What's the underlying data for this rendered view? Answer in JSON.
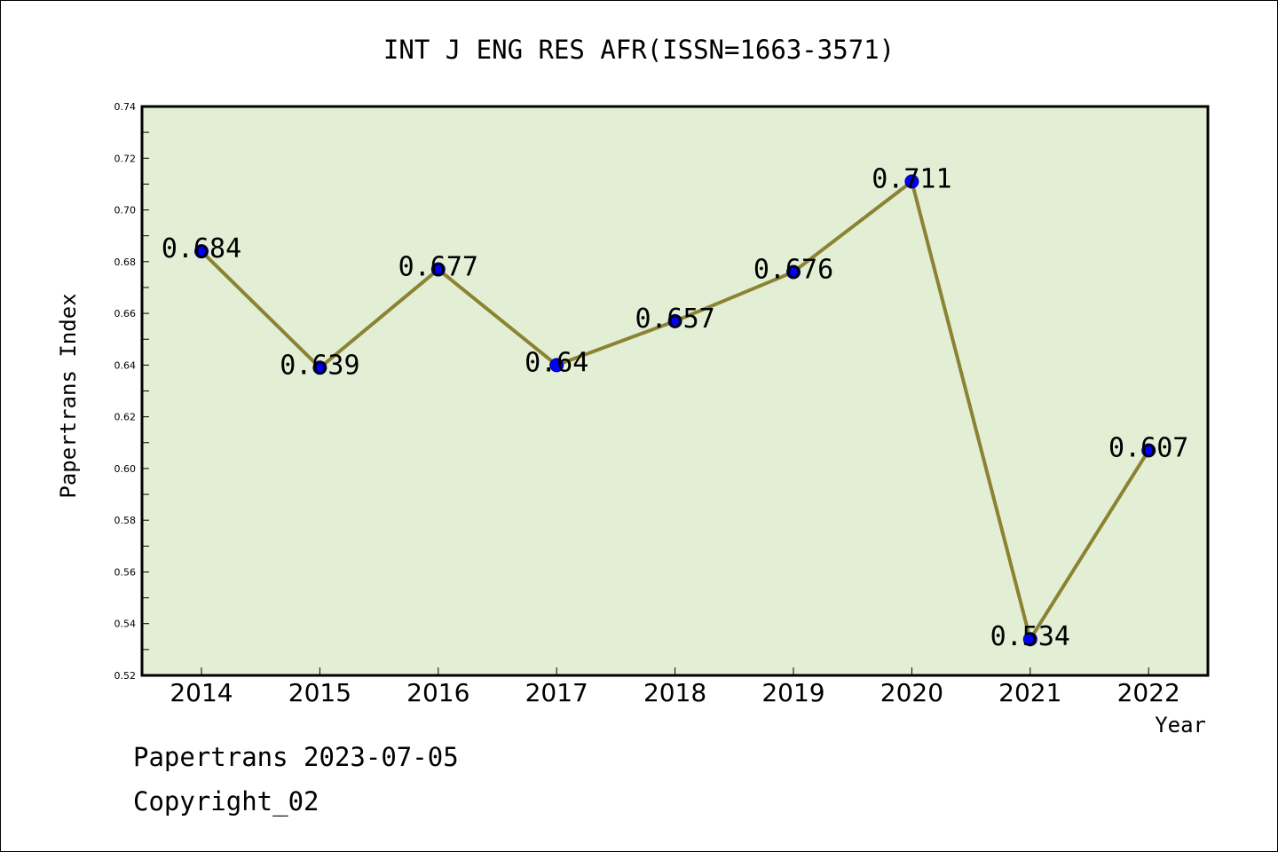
{
  "colors": {
    "plot_background": "#e2efd5",
    "line": "#8b8232",
    "marker": "#0000ff",
    "axis": "#000000"
  },
  "chart_data": {
    "type": "line",
    "title": "INT J ENG RES AFR(ISSN=1663-3571)",
    "xlabel": "Year",
    "ylabel": "Papertrans Index",
    "categories": [
      "2014",
      "2015",
      "2016",
      "2017",
      "2018",
      "2019",
      "2020",
      "2021",
      "2022"
    ],
    "series": [
      {
        "values": [
          0.684,
          0.639,
          0.677,
          0.64,
          0.657,
          0.676,
          0.711,
          0.534,
          0.607
        ],
        "data_labels": [
          "0.684",
          "0.639",
          "0.677",
          "0.64",
          "0.657",
          "0.676",
          "0.711",
          "0.534",
          "0.607"
        ]
      }
    ],
    "ylim": [
      0.52,
      0.74
    ],
    "yticks": [
      "0.52",
      "0.54",
      "0.56",
      "0.58",
      "0.60",
      "0.62",
      "0.64",
      "0.66",
      "0.68",
      "0.70",
      "0.72",
      "0.74"
    ],
    "grid": false,
    "legend": "none"
  },
  "footer": {
    "line1": "Papertrans 2023-07-05",
    "line2": "Copyright_02"
  }
}
